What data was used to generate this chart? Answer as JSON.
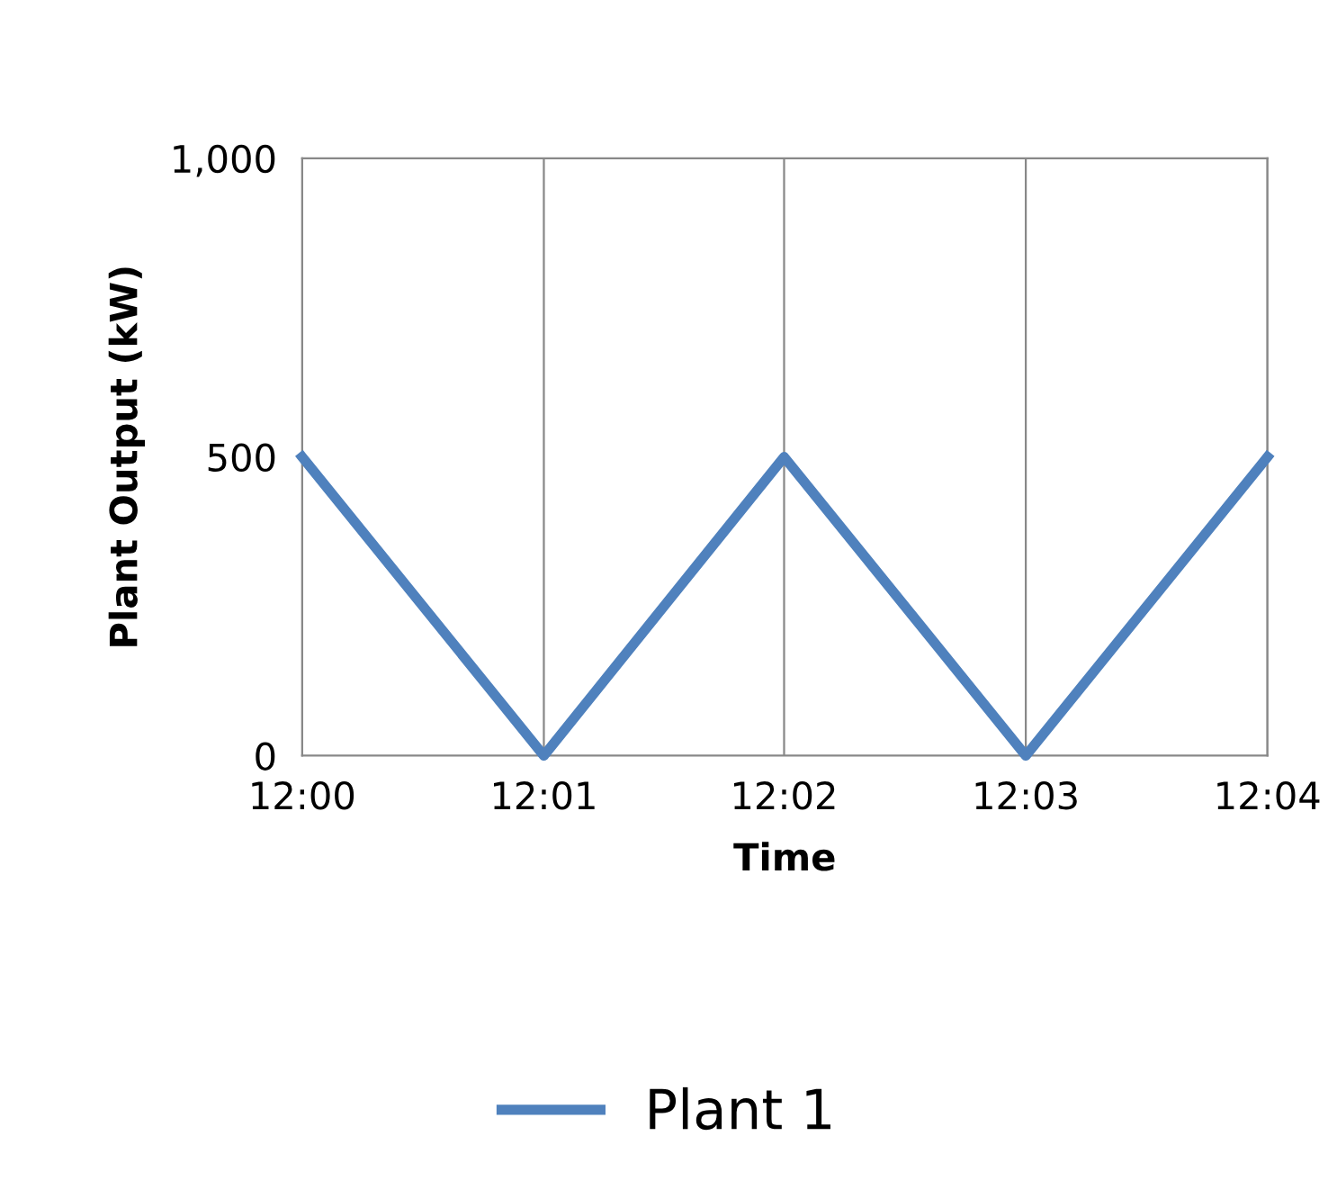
{
  "chart_data": {
    "type": "line",
    "xlabel": "Time",
    "ylabel": "Plant Output (kW)",
    "x": [
      12,
      12.0167,
      12.0333,
      12.05,
      12.0667
    ],
    "series": [
      {
        "name": "Plant 1",
        "color": "#4f81bd",
        "values": [
          500,
          0,
          500,
          0,
          500
        ]
      }
    ],
    "xlim": [
      12,
      12.0667
    ],
    "xticks": [
      {
        "value": 12,
        "label": "12:00"
      },
      {
        "value": 12.0167,
        "label": "12:01"
      },
      {
        "value": 12.0333,
        "label": "12:02"
      },
      {
        "value": 12.05,
        "label": "12:03"
      },
      {
        "value": 12.0667,
        "label": "12:04"
      }
    ],
    "ylim": [
      0,
      1000
    ],
    "yticks": [
      {
        "value": 0,
        "label": "0"
      },
      {
        "value": 500,
        "label": "500"
      },
      {
        "value": 1000,
        "label": "1,000"
      }
    ],
    "grid": "x",
    "legend": "bottom",
    "marker": "none",
    "line_style": "solid"
  }
}
